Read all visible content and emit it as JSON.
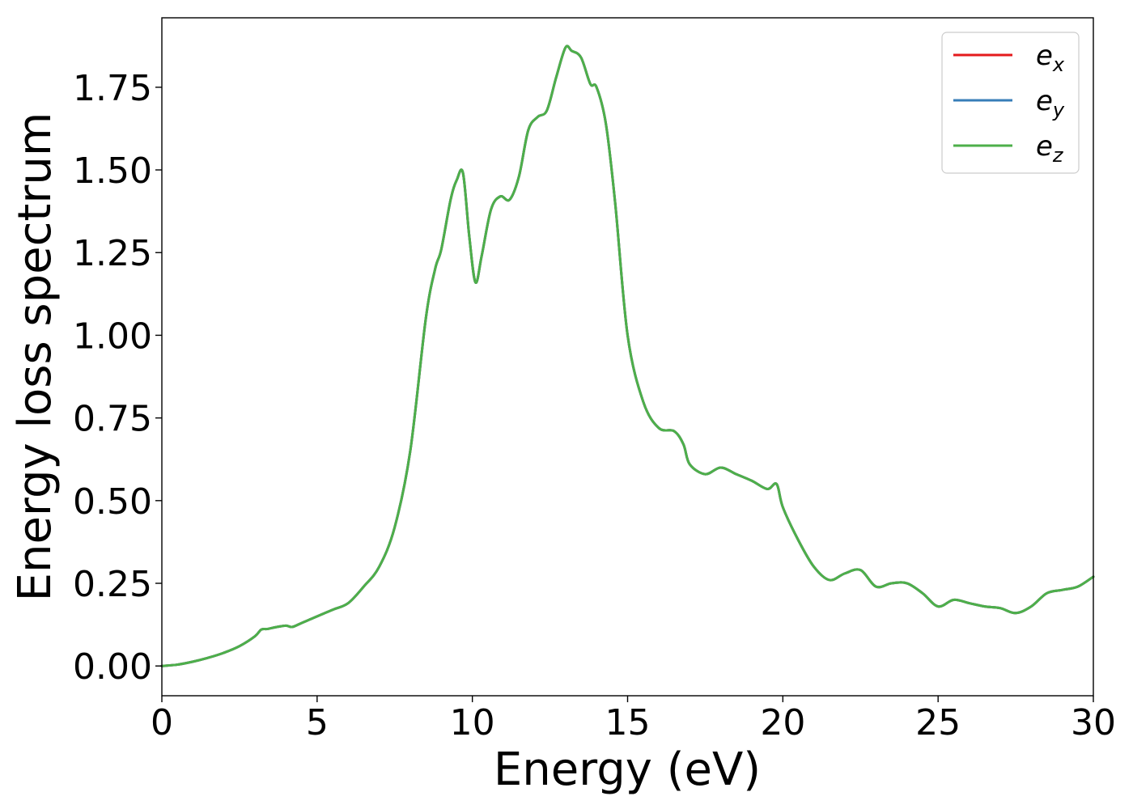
{
  "chart_data": {
    "type": "line",
    "xlabel": "Energy (eV)",
    "ylabel": "Energy loss spectrum",
    "xlim": [
      0,
      30
    ],
    "ylim": [
      -0.09,
      1.96
    ],
    "xticks": [
      0,
      5,
      10,
      15,
      20,
      25,
      30
    ],
    "xtick_labels": [
      "0",
      "5",
      "10",
      "15",
      "20",
      "25",
      "30"
    ],
    "yticks": [
      0,
      0.25,
      0.5,
      0.75,
      1.0,
      1.25,
      1.5,
      1.75
    ],
    "ytick_labels": [
      "0.00",
      "0.25",
      "0.50",
      "0.75",
      "1.00",
      "1.25",
      "1.50",
      "1.75"
    ],
    "grid": false,
    "legend_position": "top-right",
    "x": [
      0,
      0.5,
      1,
      1.5,
      2,
      2.5,
      3,
      3.2,
      3.4,
      3.7,
      4,
      4.2,
      4.5,
      5,
      5.5,
      6,
      6.5,
      7,
      7.5,
      8,
      8.5,
      8.8,
      9,
      9.3,
      9.5,
      9.7,
      9.9,
      10.1,
      10.3,
      10.6,
      10.9,
      11.2,
      11.5,
      11.8,
      12.1,
      12.4,
      12.7,
      13.0,
      13.2,
      13.5,
      13.8,
      14.0,
      14.3,
      14.6,
      15.0,
      15.5,
      16.0,
      16.5,
      16.8,
      17.0,
      17.5,
      18.0,
      18.5,
      19.0,
      19.5,
      19.8,
      20.0,
      20.5,
      21.0,
      21.5,
      22.0,
      22.5,
      23.0,
      23.5,
      24.0,
      24.5,
      25.0,
      25.5,
      26.0,
      26.5,
      27.0,
      27.5,
      28.0,
      28.5,
      29.0,
      29.5,
      30.0
    ],
    "series": [
      {
        "name": "e_x",
        "color": "#e41a1c",
        "values": [
          0.0,
          0.004,
          0.013,
          0.025,
          0.04,
          0.06,
          0.09,
          0.11,
          0.112,
          0.118,
          0.122,
          0.118,
          0.13,
          0.15,
          0.17,
          0.19,
          0.24,
          0.3,
          0.42,
          0.65,
          1.05,
          1.2,
          1.26,
          1.41,
          1.47,
          1.49,
          1.3,
          1.16,
          1.24,
          1.38,
          1.42,
          1.41,
          1.48,
          1.62,
          1.66,
          1.68,
          1.78,
          1.87,
          1.86,
          1.84,
          1.76,
          1.75,
          1.64,
          1.4,
          1.0,
          0.8,
          0.72,
          0.71,
          0.67,
          0.61,
          0.58,
          0.6,
          0.58,
          0.56,
          0.535,
          0.55,
          0.48,
          0.38,
          0.3,
          0.26,
          0.28,
          0.29,
          0.24,
          0.25,
          0.25,
          0.22,
          0.18,
          0.2,
          0.19,
          0.18,
          0.175,
          0.16,
          0.18,
          0.22,
          0.23,
          0.24,
          0.27
        ]
      },
      {
        "name": "e_y",
        "color": "#377eb8",
        "values": [
          0.0,
          0.004,
          0.013,
          0.025,
          0.04,
          0.06,
          0.09,
          0.11,
          0.112,
          0.118,
          0.122,
          0.118,
          0.13,
          0.15,
          0.17,
          0.19,
          0.24,
          0.3,
          0.42,
          0.65,
          1.05,
          1.2,
          1.26,
          1.41,
          1.47,
          1.49,
          1.3,
          1.16,
          1.24,
          1.38,
          1.42,
          1.41,
          1.48,
          1.62,
          1.66,
          1.68,
          1.78,
          1.87,
          1.86,
          1.84,
          1.76,
          1.75,
          1.64,
          1.4,
          1.0,
          0.8,
          0.72,
          0.71,
          0.67,
          0.61,
          0.58,
          0.6,
          0.58,
          0.56,
          0.535,
          0.55,
          0.48,
          0.38,
          0.3,
          0.26,
          0.28,
          0.29,
          0.24,
          0.25,
          0.25,
          0.22,
          0.18,
          0.2,
          0.19,
          0.18,
          0.175,
          0.16,
          0.18,
          0.22,
          0.23,
          0.24,
          0.27
        ]
      },
      {
        "name": "e_z",
        "color": "#4daf4a",
        "values": [
          0.0,
          0.004,
          0.013,
          0.025,
          0.04,
          0.06,
          0.09,
          0.11,
          0.112,
          0.118,
          0.122,
          0.118,
          0.13,
          0.15,
          0.17,
          0.19,
          0.24,
          0.3,
          0.42,
          0.65,
          1.05,
          1.2,
          1.26,
          1.41,
          1.47,
          1.49,
          1.3,
          1.16,
          1.24,
          1.38,
          1.42,
          1.41,
          1.48,
          1.62,
          1.66,
          1.68,
          1.78,
          1.87,
          1.86,
          1.84,
          1.76,
          1.75,
          1.64,
          1.4,
          1.0,
          0.8,
          0.72,
          0.71,
          0.67,
          0.61,
          0.58,
          0.6,
          0.58,
          0.56,
          0.535,
          0.55,
          0.48,
          0.38,
          0.3,
          0.26,
          0.28,
          0.29,
          0.24,
          0.25,
          0.25,
          0.22,
          0.18,
          0.2,
          0.19,
          0.18,
          0.175,
          0.16,
          0.18,
          0.22,
          0.23,
          0.24,
          0.27
        ]
      }
    ],
    "legend": [
      {
        "base": "e",
        "sub": "x",
        "color": "#e41a1c"
      },
      {
        "base": "e",
        "sub": "y",
        "color": "#377eb8"
      },
      {
        "base": "e",
        "sub": "z",
        "color": "#4daf4a"
      }
    ]
  }
}
